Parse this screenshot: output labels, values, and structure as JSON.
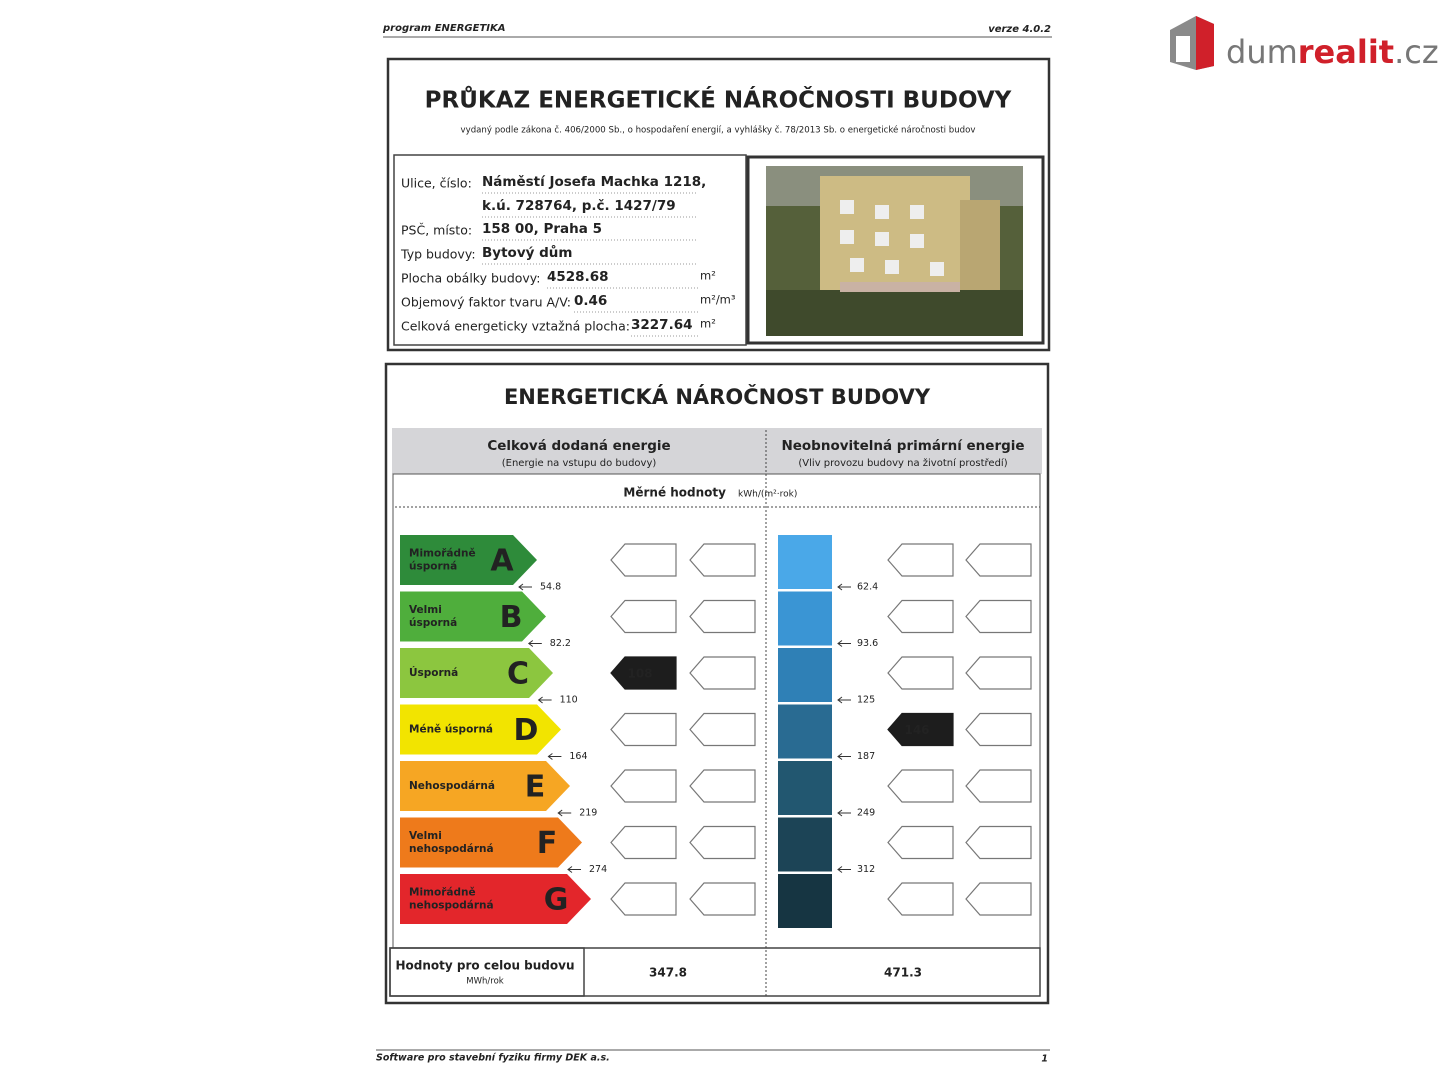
{
  "header": {
    "program": "program ENERGETIKA",
    "version": "verze 4.0.2"
  },
  "logo": {
    "parts": [
      "dum",
      "realit",
      ".cz"
    ]
  },
  "certificate": {
    "title": "PRŮKAZ ENERGETICKÉ NÁROČNOSTI BUDOVY",
    "subtitle": "vydaný podle zákona č. 406/2000 Sb., o hospodaření energií, a vyhlášky č. 78/2013 Sb. o energetické náročnosti budov",
    "fields": [
      {
        "label": "Ulice, číslo:",
        "lines": [
          "Náměstí Josefa Machka 1218,",
          "k.ú. 728764, p.č. 1427/79"
        ]
      },
      {
        "label": "PSČ, místo:",
        "lines": [
          "158 00, Praha 5"
        ]
      },
      {
        "label": "Typ budovy:",
        "lines": [
          "Bytový dům"
        ]
      },
      {
        "label": "Plocha obálky budovy:",
        "lines": [
          "4528.68"
        ],
        "unit": "m²"
      },
      {
        "label": "Objemový faktor tvaru A/V:",
        "lines": [
          "0.46"
        ],
        "unit": "m²/m³"
      },
      {
        "label": "Celková energeticky vztažná plocha:",
        "lines": [
          "3227.64"
        ],
        "unit": "m²"
      }
    ]
  },
  "rating": {
    "title": "ENERGETICKÁ NÁROČNOST BUDOVY",
    "columns": [
      {
        "title": "Celková dodaná energie",
        "subtitle": "(Energie na vstupu do budovy)"
      },
      {
        "title": "Neobnovitelná primární energie",
        "subtitle": "(Vliv provozu budovy na životní prostředí)"
      }
    ],
    "unit_label": "Měrné hodnoty",
    "unit": "kWh/(m²·rok)",
    "classes": [
      {
        "letter": "A",
        "label": [
          "Mimořádně",
          "úsporná"
        ],
        "color": "#2e8b3a"
      },
      {
        "letter": "B",
        "label": [
          "Velmi",
          "úsporná"
        ],
        "color": "#4fae3c"
      },
      {
        "letter": "C",
        "label": [
          "Úsporná"
        ],
        "color": "#8cc63f"
      },
      {
        "letter": "D",
        "label": [
          "Méně úsporná"
        ],
        "color": "#f2e400"
      },
      {
        "letter": "E",
        "label": [
          "Nehospodárná"
        ],
        "color": "#f6a623"
      },
      {
        "letter": "F",
        "label": [
          "Velmi",
          "nehospodárná"
        ],
        "color": "#ee7a1b"
      },
      {
        "letter": "G",
        "label": [
          "Mimořádně",
          "nehospodárná"
        ],
        "color": "#e3262b"
      }
    ],
    "delivered_thresholds": [
      54.8,
      82.2,
      110,
      164,
      219,
      274
    ],
    "primary_thresholds": [
      62.4,
      93.6,
      125,
      187,
      249,
      312
    ],
    "primary_colors": [
      "#4aa8e8",
      "#3a95d4",
      "#2f80b6",
      "#296b92",
      "#225770",
      "#1c4456",
      "#163542"
    ],
    "delivered_value": 108,
    "primary_value": 146,
    "total_label": "Hodnoty pro celou budovu",
    "total_unit": "MWh/rok",
    "delivered_total": 347.8,
    "primary_total": 471.3
  },
  "footer": {
    "software": "Software pro stavební fyziku firmy DEK a.s.",
    "page": "1"
  }
}
